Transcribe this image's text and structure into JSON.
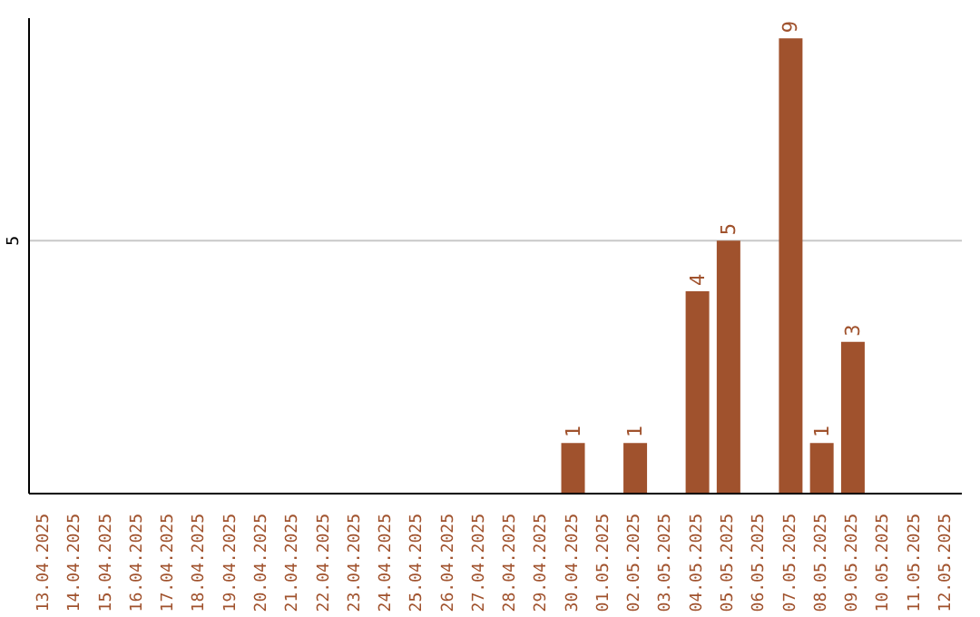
{
  "chart_data": {
    "type": "bar",
    "categories": [
      "13.04.2025",
      "14.04.2025",
      "15.04.2025",
      "16.04.2025",
      "17.04.2025",
      "18.04.2025",
      "19.04.2025",
      "20.04.2025",
      "21.04.2025",
      "22.04.2025",
      "23.04.2025",
      "24.04.2025",
      "25.04.2025",
      "26.04.2025",
      "27.04.2025",
      "28.04.2025",
      "29.04.2025",
      "30.04.2025",
      "01.05.2025",
      "02.05.2025",
      "03.05.2025",
      "04.05.2025",
      "05.05.2025",
      "06.05.2025",
      "07.05.2025",
      "08.05.2025",
      "09.05.2025",
      "10.05.2025",
      "11.05.2025",
      "12.05.2025"
    ],
    "values": [
      null,
      null,
      null,
      null,
      null,
      null,
      null,
      null,
      null,
      null,
      null,
      null,
      null,
      null,
      null,
      null,
      null,
      1,
      null,
      1,
      null,
      4,
      5,
      null,
      9,
      1,
      3,
      null,
      null,
      null
    ],
    "color": "#a0522d",
    "ylim": [
      0,
      9.4
    ],
    "yticks": [
      5
    ],
    "grid": "y",
    "data_labels": true
  }
}
